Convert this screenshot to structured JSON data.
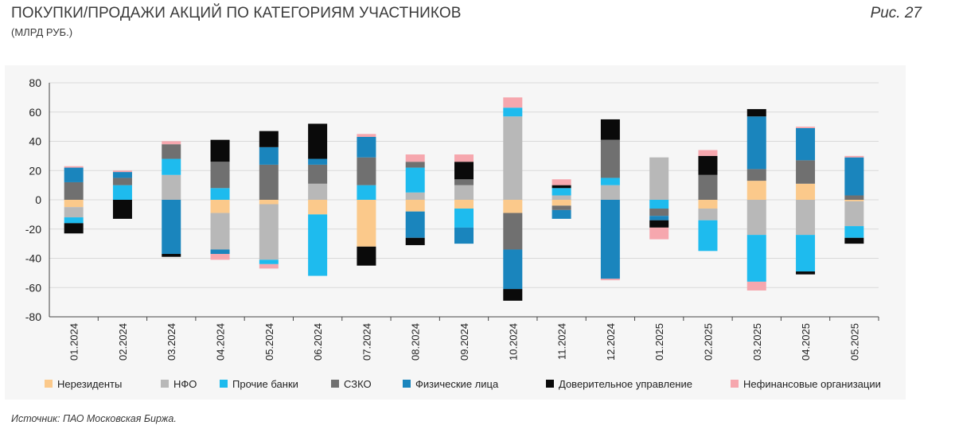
{
  "header": {
    "title": "ПОКУПКИ/ПРОДАЖИ АКЦИЙ ПО КАТЕГОРИЯМ УЧАСТНИКОВ",
    "subtitle": "(МЛРД РУБ.)",
    "figure_label": "Рис. 27"
  },
  "footer": {
    "source": "Источник: ПАО Московская Биржа."
  },
  "chart_data": {
    "type": "bar",
    "stacked": true,
    "title": "ПОКУПКИ/ПРОДАЖИ АКЦИЙ ПО КАТЕГОРИЯМ УЧАСТНИКОВ",
    "ylabel": "(МЛРД РУБ.)",
    "ylim": [
      -80,
      80
    ],
    "yticks": [
      80,
      60,
      40,
      20,
      0,
      -20,
      -40,
      -60,
      -80
    ],
    "grid": true,
    "legend_position": "bottom",
    "categories": [
      "01.2024",
      "02.2024",
      "03.2024",
      "04.2024",
      "05.2024",
      "06.2024",
      "07.2024",
      "08.2024",
      "09.2024",
      "10.2024",
      "11.2024",
      "12.2024",
      "01.2025",
      "02.2025",
      "03.2025",
      "04.2025",
      "05.2025"
    ],
    "series": [
      {
        "name": "Нерезиденты",
        "color": "#fbc98b",
        "values": [
          -5,
          0,
          0,
          -9,
          -3,
          -10,
          -32,
          -8,
          -6,
          -9,
          -4,
          0,
          0,
          -6,
          13,
          11,
          -1
        ]
      },
      {
        "name": "НФО",
        "color": "#b8b8b8",
        "values": [
          -7,
          0,
          17,
          -25,
          -38,
          11,
          0,
          5,
          10,
          57,
          3,
          10,
          29,
          -8,
          -24,
          -24,
          -17
        ]
      },
      {
        "name": "Прочие банки",
        "color": "#1ebbee",
        "values": [
          -4,
          10,
          11,
          8,
          -3,
          -42,
          10,
          17,
          -13,
          6,
          5,
          5,
          -6,
          -21,
          -32,
          -25,
          -8
        ]
      },
      {
        "name": "СЗКО",
        "color": "#707070",
        "values": [
          12,
          5,
          10,
          18,
          24,
          13,
          19,
          4,
          4,
          -25,
          -3,
          26,
          -5,
          17,
          8,
          16,
          3
        ]
      },
      {
        "name": "Физические лица",
        "color": "#1a85bd",
        "values": [
          10,
          4,
          -37,
          -3,
          12,
          4,
          14,
          -18,
          -11,
          -27,
          -6,
          -54,
          -3,
          0,
          36,
          22,
          26
        ]
      },
      {
        "name": "Доверительное управление",
        "color": "#0a0a0a",
        "values": [
          -7,
          -13,
          -2,
          15,
          11,
          24,
          -13,
          -5,
          12,
          -8,
          2,
          14,
          -5,
          13,
          5,
          -2,
          -4
        ]
      },
      {
        "name": "Нефинансовые организации",
        "color": "#f6a7ae",
        "values": [
          1,
          1,
          2,
          -4,
          -3,
          0,
          2,
          5,
          5,
          7,
          4,
          -1,
          -8,
          4,
          -6,
          1,
          1
        ]
      }
    ]
  }
}
